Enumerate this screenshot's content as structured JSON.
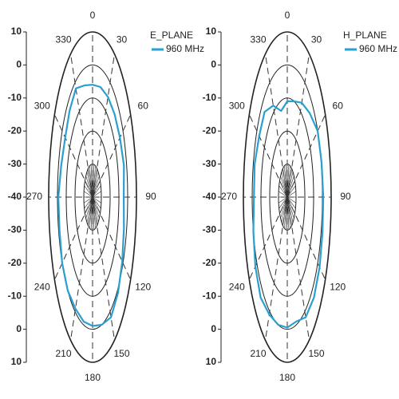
{
  "chart_data": [
    {
      "type": "polar",
      "title": "E_PLANE",
      "theta": [
        0,
        15,
        30,
        45,
        60,
        75,
        90,
        105,
        120,
        135,
        150,
        165,
        180,
        195,
        210,
        225,
        240,
        255,
        270,
        285,
        300,
        315,
        330,
        345
      ],
      "series": [
        {
          "name": "960 MHz",
          "color": "#2a9fd0",
          "values": [
            -6,
            -5.5,
            -5,
            -4.5,
            -4,
            -3,
            -4.5,
            -3,
            -1,
            1,
            2,
            0,
            -1,
            -1,
            -1,
            0,
            0,
            -1,
            -1,
            -3,
            -4,
            -3,
            -2,
            -5
          ]
        }
      ],
      "thetaticks": [
        0,
        30,
        60,
        90,
        120,
        150,
        180,
        210,
        240,
        270,
        300,
        330
      ],
      "rlim": [
        -40,
        10
      ],
      "rticks": [
        -40,
        -30,
        -20,
        -10,
        0,
        10
      ]
    },
    {
      "type": "polar",
      "title": "H_PLANE",
      "theta": [
        0,
        15,
        30,
        45,
        60,
        75,
        90,
        105,
        120,
        135,
        150,
        165,
        180,
        195,
        210,
        225,
        240,
        255,
        270,
        285,
        300,
        315,
        330,
        345
      ],
      "series": [
        {
          "name": "960 MHz",
          "color": "#2a9fd0",
          "values": [
            -11,
            -10,
            -7,
            -4,
            0,
            0.5,
            1,
            1.5,
            2.5,
            3,
            2,
            -1,
            -0.5,
            0,
            1,
            3,
            2,
            0,
            -2,
            -1.5,
            -3,
            -3.5,
            -8,
            -13
          ]
        }
      ],
      "thetaticks": [
        0,
        30,
        60,
        90,
        120,
        150,
        180,
        210,
        240,
        270,
        300,
        330
      ],
      "rlim": [
        -40,
        10
      ],
      "rticks": [
        -40,
        -30,
        -20,
        -10,
        0,
        10
      ]
    }
  ]
}
